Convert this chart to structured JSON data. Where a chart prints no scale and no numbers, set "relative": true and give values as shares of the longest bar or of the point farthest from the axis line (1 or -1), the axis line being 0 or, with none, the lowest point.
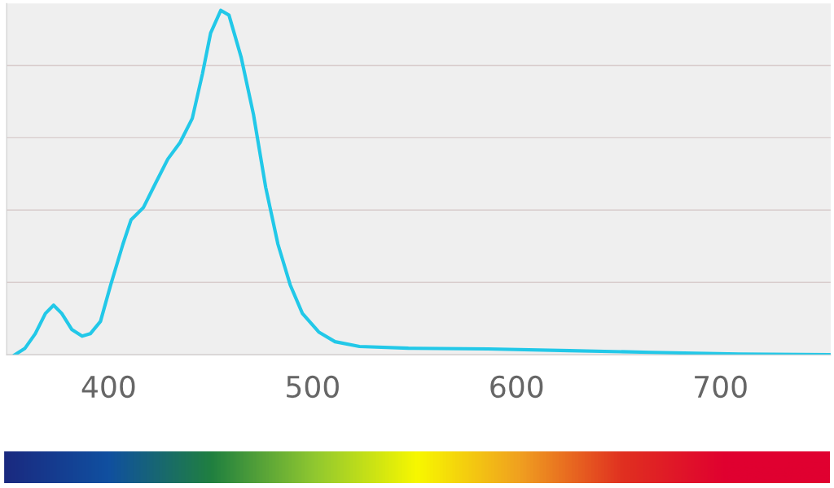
{
  "chart_data": {
    "type": "line",
    "relative": true,
    "x": [
      354,
      359,
      364,
      369,
      373,
      377,
      382,
      387,
      391,
      396,
      401,
      407,
      411,
      417,
      423,
      429,
      435,
      441,
      446,
      450,
      455,
      459,
      465,
      471,
      477,
      483,
      489,
      495,
      503,
      511,
      523,
      547,
      586,
      626,
      666,
      709,
      754
    ],
    "series": [
      {
        "color": "#22c8e8",
        "values": [
          0,
          0.019,
          0.061,
          0.12,
          0.144,
          0.12,
          0.073,
          0.054,
          0.061,
          0.097,
          0.203,
          0.321,
          0.392,
          0.427,
          0.498,
          0.568,
          0.616,
          0.686,
          0.816,
          0.934,
          1.0,
          0.986,
          0.863,
          0.698,
          0.486,
          0.321,
          0.203,
          0.12,
          0.066,
          0.038,
          0.024,
          0.019,
          0.017,
          0.012,
          0.007,
          0.002,
          0
        ]
      }
    ],
    "xlim": [
      350,
      754
    ],
    "xticks": [
      400,
      500,
      600,
      700
    ],
    "grid": "y",
    "marker": "none",
    "line_style": "solid",
    "legend": false
  }
}
